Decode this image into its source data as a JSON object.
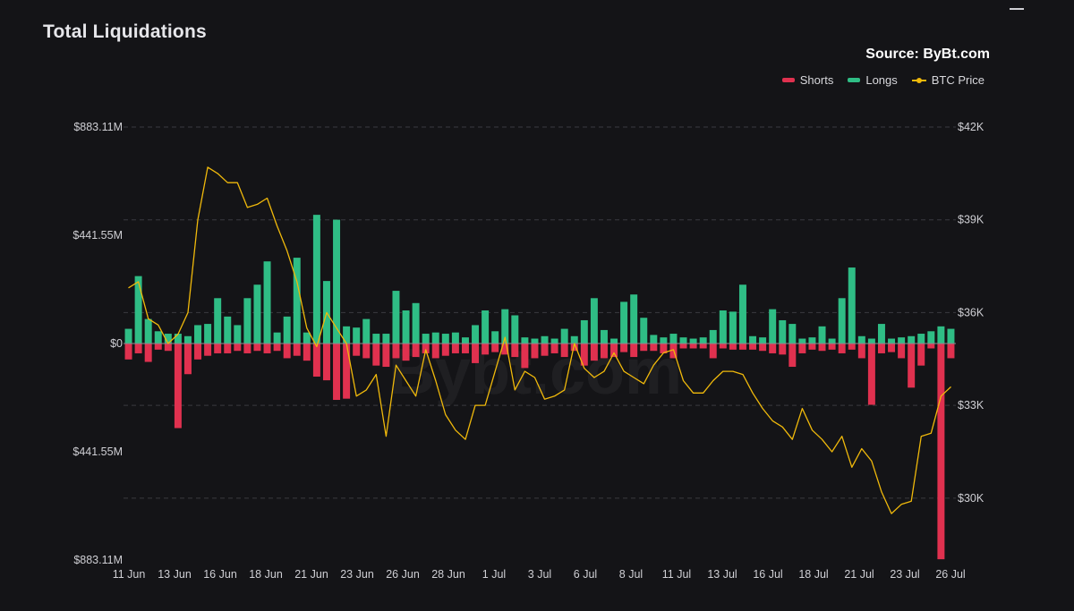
{
  "header": {
    "title": "Total Liquidations",
    "source": "Source: ByBt.com"
  },
  "legend": [
    {
      "label": "Shorts",
      "color": "#e0314f",
      "kind": "bar"
    },
    {
      "label": "Longs",
      "color": "#2fbd85",
      "kind": "bar"
    },
    {
      "label": "BTC Price",
      "color": "#f0b90b",
      "kind": "line"
    }
  ],
  "chart_data": {
    "type": "bar",
    "title": "Total Liquidations",
    "watermark": "Bybt.com",
    "y_left_ticks": [
      "$883.11M",
      "$441.55M",
      "$0",
      "$441.55M",
      "$883.11M"
    ],
    "y_left_range": [
      -883.11,
      883.11
    ],
    "y_left_unit": "$M",
    "y_right_ticks": [
      "$42K",
      "$39K",
      "$36K",
      "$33K",
      "$30K"
    ],
    "y_right_range": [
      28000,
      42000
    ],
    "x_tick_labels": [
      "11 Jun",
      "13 Jun",
      "16 Jun",
      "18 Jun",
      "21 Jun",
      "23 Jun",
      "26 Jun",
      "28 Jun",
      "1 Jul",
      "3 Jul",
      "6 Jul",
      "8 Jul",
      "11 Jul",
      "13 Jul",
      "16 Jul",
      "18 Jul",
      "21 Jul",
      "23 Jul",
      "26 Jul"
    ],
    "grid": true,
    "legend_position": "top-right",
    "colors": {
      "shorts": "#e0314f",
      "longs": "#2fbd85",
      "price": "#f0b90b",
      "grid": "#3a3a40"
    },
    "series": [
      {
        "name": "Longs",
        "values": [
          60,
          275,
          100,
          50,
          40,
          40,
          30,
          75,
          80,
          185,
          110,
          75,
          185,
          240,
          335,
          45,
          110,
          350,
          45,
          525,
          255,
          505,
          70,
          65,
          100,
          40,
          40,
          215,
          135,
          165,
          40,
          45,
          40,
          45,
          25,
          75,
          135,
          50,
          140,
          115,
          25,
          20,
          30,
          20,
          60,
          30,
          95,
          185,
          55,
          20,
          170,
          200,
          105,
          35,
          25,
          40,
          25,
          20,
          25,
          55,
          135,
          130,
          240,
          30,
          25,
          140,
          95,
          80,
          20,
          25,
          70,
          20,
          185,
          310,
          30,
          20,
          80,
          20,
          25,
          30,
          40,
          50,
          70,
          60
        ]
      },
      {
        "name": "Shorts",
        "values": [
          -65,
          -40,
          -75,
          -25,
          -30,
          -345,
          -125,
          -65,
          -50,
          -40,
          -40,
          -30,
          -40,
          -30,
          -40,
          -30,
          -60,
          -50,
          -70,
          -135,
          -150,
          -230,
          -225,
          -50,
          -60,
          -90,
          -95,
          -60,
          -70,
          -55,
          -40,
          -60,
          -50,
          -40,
          -40,
          -80,
          -45,
          -35,
          -45,
          -55,
          -100,
          -60,
          -50,
          -40,
          -55,
          -30,
          -90,
          -70,
          -60,
          -55,
          -35,
          -55,
          -30,
          -30,
          -40,
          -60,
          -20,
          -20,
          -20,
          -60,
          -20,
          -25,
          -25,
          -25,
          -30,
          -40,
          -45,
          -95,
          -40,
          -25,
          -30,
          -25,
          -40,
          -25,
          -60,
          -250,
          -40,
          -35,
          -60,
          -180,
          -90,
          -20,
          -880,
          -60
        ]
      },
      {
        "name": "BTC Price",
        "values": [
          36800,
          37000,
          35800,
          35600,
          35000,
          35300,
          36000,
          39000,
          40700,
          40500,
          40200,
          40200,
          39400,
          39500,
          39700,
          38800,
          38000,
          37000,
          35500,
          34900,
          36000,
          35500,
          35000,
          33300,
          33500,
          34000,
          32000,
          34300,
          33800,
          33300,
          34800,
          33800,
          32700,
          32200,
          31900,
          33000,
          33000,
          34100,
          35200,
          33500,
          34100,
          33900,
          33200,
          33300,
          33500,
          35000,
          34200,
          33900,
          34100,
          34700,
          34100,
          33900,
          33700,
          34300,
          34700,
          34800,
          33800,
          33400,
          33400,
          33800,
          34100,
          34100,
          34000,
          33400,
          32900,
          32500,
          32300,
          31900,
          32900,
          32200,
          31900,
          31500,
          32000,
          31000,
          31600,
          31200,
          30200,
          29500,
          29800,
          29900,
          32000,
          32100,
          33300,
          33600
        ]
      }
    ]
  }
}
